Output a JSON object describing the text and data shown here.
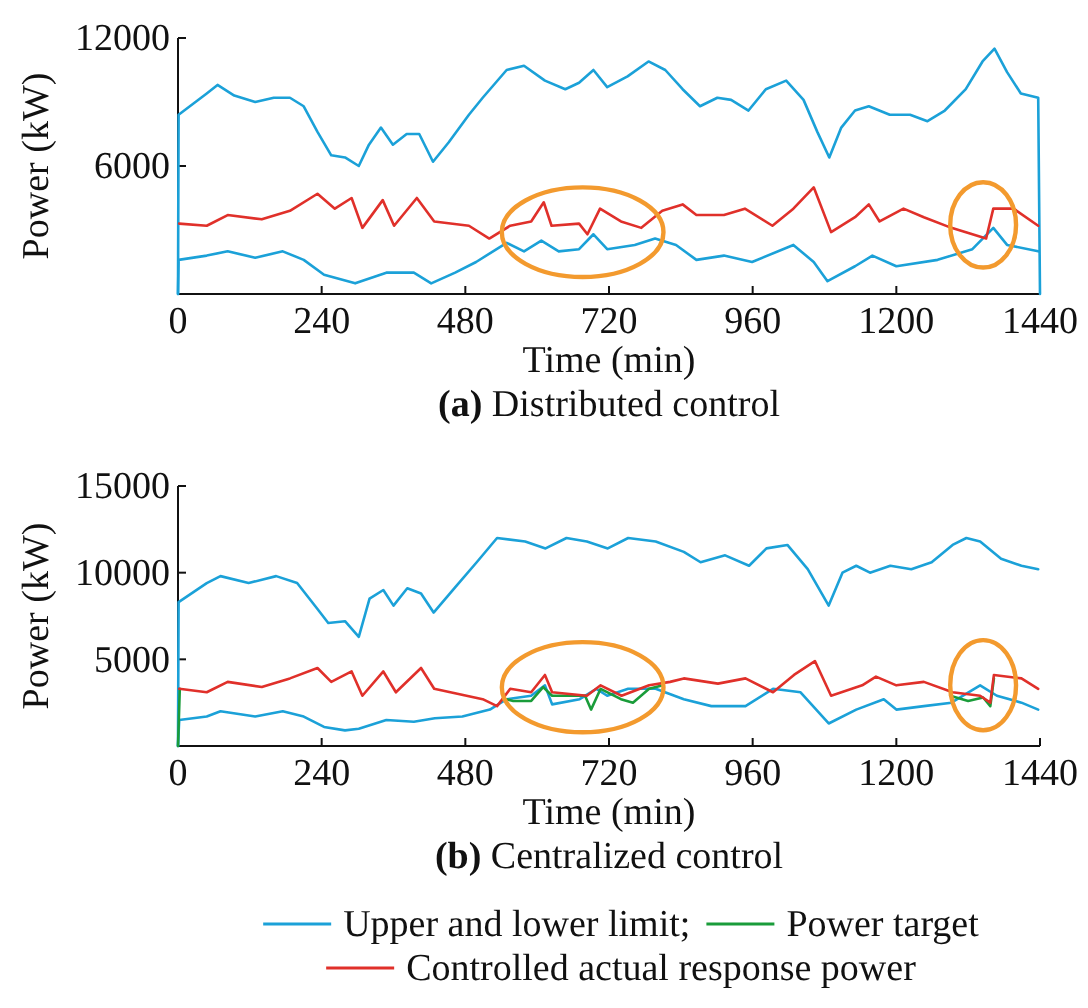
{
  "chart_data": [
    {
      "type": "line",
      "title": "(a) Distributed control",
      "xlabel": "Time (min)",
      "ylabel": "Power (kW)",
      "xlim": [
        0,
        1440
      ],
      "xticks": [
        0,
        240,
        480,
        720,
        960,
        1200,
        1440
      ],
      "ylim": [
        0,
        12000
      ],
      "yticks": [
        6000,
        12000
      ],
      "legend": false,
      "series": [
        {
          "color": "#1ba1d8",
          "x": [
            0,
            1,
            48,
            66,
            94,
            129,
            160,
            187,
            210,
            233,
            256,
            279,
            302,
            319,
            339,
            359,
            382,
            403,
            426,
            452,
            486,
            509,
            549,
            578,
            613,
            647,
            670,
            694,
            717,
            751,
            786,
            814,
            843,
            872,
            901,
            924,
            953,
            982,
            1016,
            1045,
            1068,
            1088,
            1108,
            1131,
            1154,
            1189,
            1223,
            1252,
            1281,
            1316,
            1344,
            1364,
            1385,
            1408,
            1437,
            1440
          ],
          "values": [
            0,
            8400,
            9400,
            9800,
            9300,
            9000,
            9200,
            9200,
            8800,
            7600,
            6500,
            6400,
            6000,
            7000,
            7800,
            7000,
            7500,
            7500,
            6200,
            7100,
            8400,
            9200,
            10500,
            10700,
            10000,
            9600,
            9900,
            10500,
            9700,
            10200,
            10900,
            10500,
            9600,
            8800,
            9200,
            9100,
            8600,
            9600,
            10000,
            9100,
            7600,
            6400,
            7800,
            8600,
            8800,
            8400,
            8400,
            8100,
            8600,
            9600,
            10900,
            11500,
            10400,
            9400,
            9200,
            0
          ]
        },
        {
          "color": "#1ba1d8",
          "x": [
            0,
            1,
            48,
            83,
            129,
            175,
            210,
            244,
            296,
            348,
            394,
            423,
            463,
            498,
            549,
            578,
            607,
            636,
            670,
            694,
            717,
            763,
            797,
            832,
            866,
            912,
            959,
            1028,
            1062,
            1085,
            1131,
            1160,
            1200,
            1269,
            1327,
            1362,
            1385,
            1437
          ],
          "values": [
            0,
            1600,
            1800,
            2000,
            1700,
            2000,
            1600,
            900,
            500,
            1000,
            1000,
            500,
            1000,
            1500,
            2400,
            2000,
            2500,
            2000,
            2100,
            2800,
            2100,
            2300,
            2600,
            2300,
            1600,
            1800,
            1500,
            2300,
            1500,
            600,
            1300,
            1800,
            1300,
            1600,
            2100,
            3100,
            2300,
            2000
          ]
        },
        {
          "color": "#e0302a",
          "x": [
            2,
            48,
            83,
            140,
            187,
            233,
            262,
            290,
            308,
            342,
            361,
            399,
            428,
            486,
            520,
            555,
            590,
            611,
            624,
            670,
            684,
            705,
            740,
            774,
            809,
            843,
            866,
            912,
            947,
            993,
            1028,
            1062,
            1091,
            1131,
            1154,
            1172,
            1212,
            1246,
            1292,
            1350,
            1362,
            1396,
            1437
          ],
          "values": [
            3300,
            3200,
            3700,
            3500,
            3900,
            4700,
            4000,
            4500,
            3100,
            4400,
            3200,
            4500,
            3400,
            3200,
            2600,
            3200,
            3400,
            4300,
            3200,
            3300,
            2800,
            4000,
            3400,
            3100,
            3900,
            4200,
            3700,
            3700,
            4000,
            3200,
            4000,
            5000,
            2900,
            3600,
            4200,
            3400,
            4000,
            3600,
            3100,
            2600,
            4000,
            4000,
            3200
          ]
        }
      ]
    },
    {
      "type": "line",
      "title": "(b) Centralized control",
      "xlabel": "Time (min)",
      "ylabel": "Power (kW)",
      "xlim": [
        0,
        1440
      ],
      "xticks": [
        0,
        240,
        480,
        720,
        960,
        1200,
        1440
      ],
      "ylim": [
        0,
        15000
      ],
      "yticks": [
        5000,
        10000,
        15000
      ],
      "legend": "bottom",
      "series": [
        {
          "name": "Upper and lower limit;",
          "color": "#1ba1d8",
          "x": [
            0,
            1,
            48,
            71,
            118,
            164,
            199,
            233,
            251,
            279,
            302,
            320,
            343,
            360,
            383,
            406,
            427,
            464,
            499,
            533,
            580,
            614,
            649,
            683,
            718,
            752,
            798,
            845,
            873,
            914,
            954,
            983,
            1018,
            1052,
            1087,
            1110,
            1133,
            1156,
            1190,
            1225,
            1259,
            1294,
            1317,
            1340,
            1375,
            1409,
            1437
          ],
          "values": [
            0,
            8300,
            9400,
            9800,
            9400,
            9800,
            9400,
            7900,
            7100,
            7200,
            6300,
            8500,
            9000,
            8100,
            9100,
            8800,
            7700,
            9200,
            10600,
            12000,
            11800,
            11400,
            12000,
            11800,
            11400,
            12000,
            11800,
            11200,
            10600,
            11000,
            10400,
            11400,
            11600,
            10200,
            8100,
            10000,
            10400,
            10000,
            10400,
            10200,
            10600,
            11600,
            12000,
            11800,
            10800,
            10400,
            10200
          ]
        },
        {
          "color": "#1ba1d8",
          "x": [
            0,
            2,
            48,
            71,
            129,
            175,
            210,
            244,
            279,
            302,
            348,
            394,
            429,
            475,
            521,
            549,
            590,
            613,
            625,
            671,
            699,
            717,
            752,
            798,
            845,
            891,
            948,
            994,
            1040,
            1087,
            1133,
            1179,
            1200,
            1246,
            1292,
            1340,
            1368,
            1409,
            1437
          ],
          "values": [
            0,
            1500,
            1700,
            2000,
            1700,
            2000,
            1700,
            1100,
            900,
            1000,
            1500,
            1400,
            1600,
            1700,
            2100,
            2700,
            2900,
            3500,
            2400,
            2700,
            3300,
            2900,
            3300,
            3300,
            2700,
            2300,
            2300,
            3300,
            3100,
            1300,
            2100,
            2700,
            2100,
            2300,
            2500,
            3500,
            2900,
            2500,
            2100
          ]
        },
        {
          "name": "Power target",
          "color": "#1a9c3a",
          "x": [
            0,
            3,
            10,
            548,
            560,
            590,
            610,
            625,
            650,
            680,
            690,
            706,
            740,
            760,
            787,
            810,
            820,
            1290,
            1320,
            1345,
            1357,
            1363
          ],
          "values": [
            0,
            3300,
            null,
            2700,
            2600,
            2600,
            3400,
            2900,
            2900,
            2900,
            2100,
            3300,
            2700,
            2500,
            3300,
            3500,
            null,
            2900,
            2600,
            2800,
            2300,
            3900
          ]
        },
        {
          "name": "Controlled actual response power",
          "color": "#e0302a",
          "x": [
            2,
            48,
            83,
            140,
            187,
            233,
            256,
            290,
            308,
            343,
            364,
            406,
            428,
            509,
            533,
            555,
            590,
            613,
            625,
            683,
            706,
            741,
            787,
            822,
            845,
            902,
            948,
            994,
            1029,
            1064,
            1091,
            1143,
            1166,
            1200,
            1246,
            1294,
            1340,
            1357,
            1363,
            1409,
            1437
          ],
          "values": [
            3300,
            3100,
            3700,
            3400,
            3900,
            4500,
            3700,
            4300,
            2900,
            4300,
            3100,
            4500,
            3300,
            2700,
            2300,
            3300,
            3100,
            4100,
            3100,
            2900,
            3500,
            2900,
            3500,
            3700,
            3900,
            3600,
            3900,
            3100,
            4100,
            4900,
            2900,
            3500,
            4000,
            3500,
            3700,
            3100,
            2900,
            2500,
            4100,
            3900,
            3300
          ]
        }
      ]
    }
  ]
}
